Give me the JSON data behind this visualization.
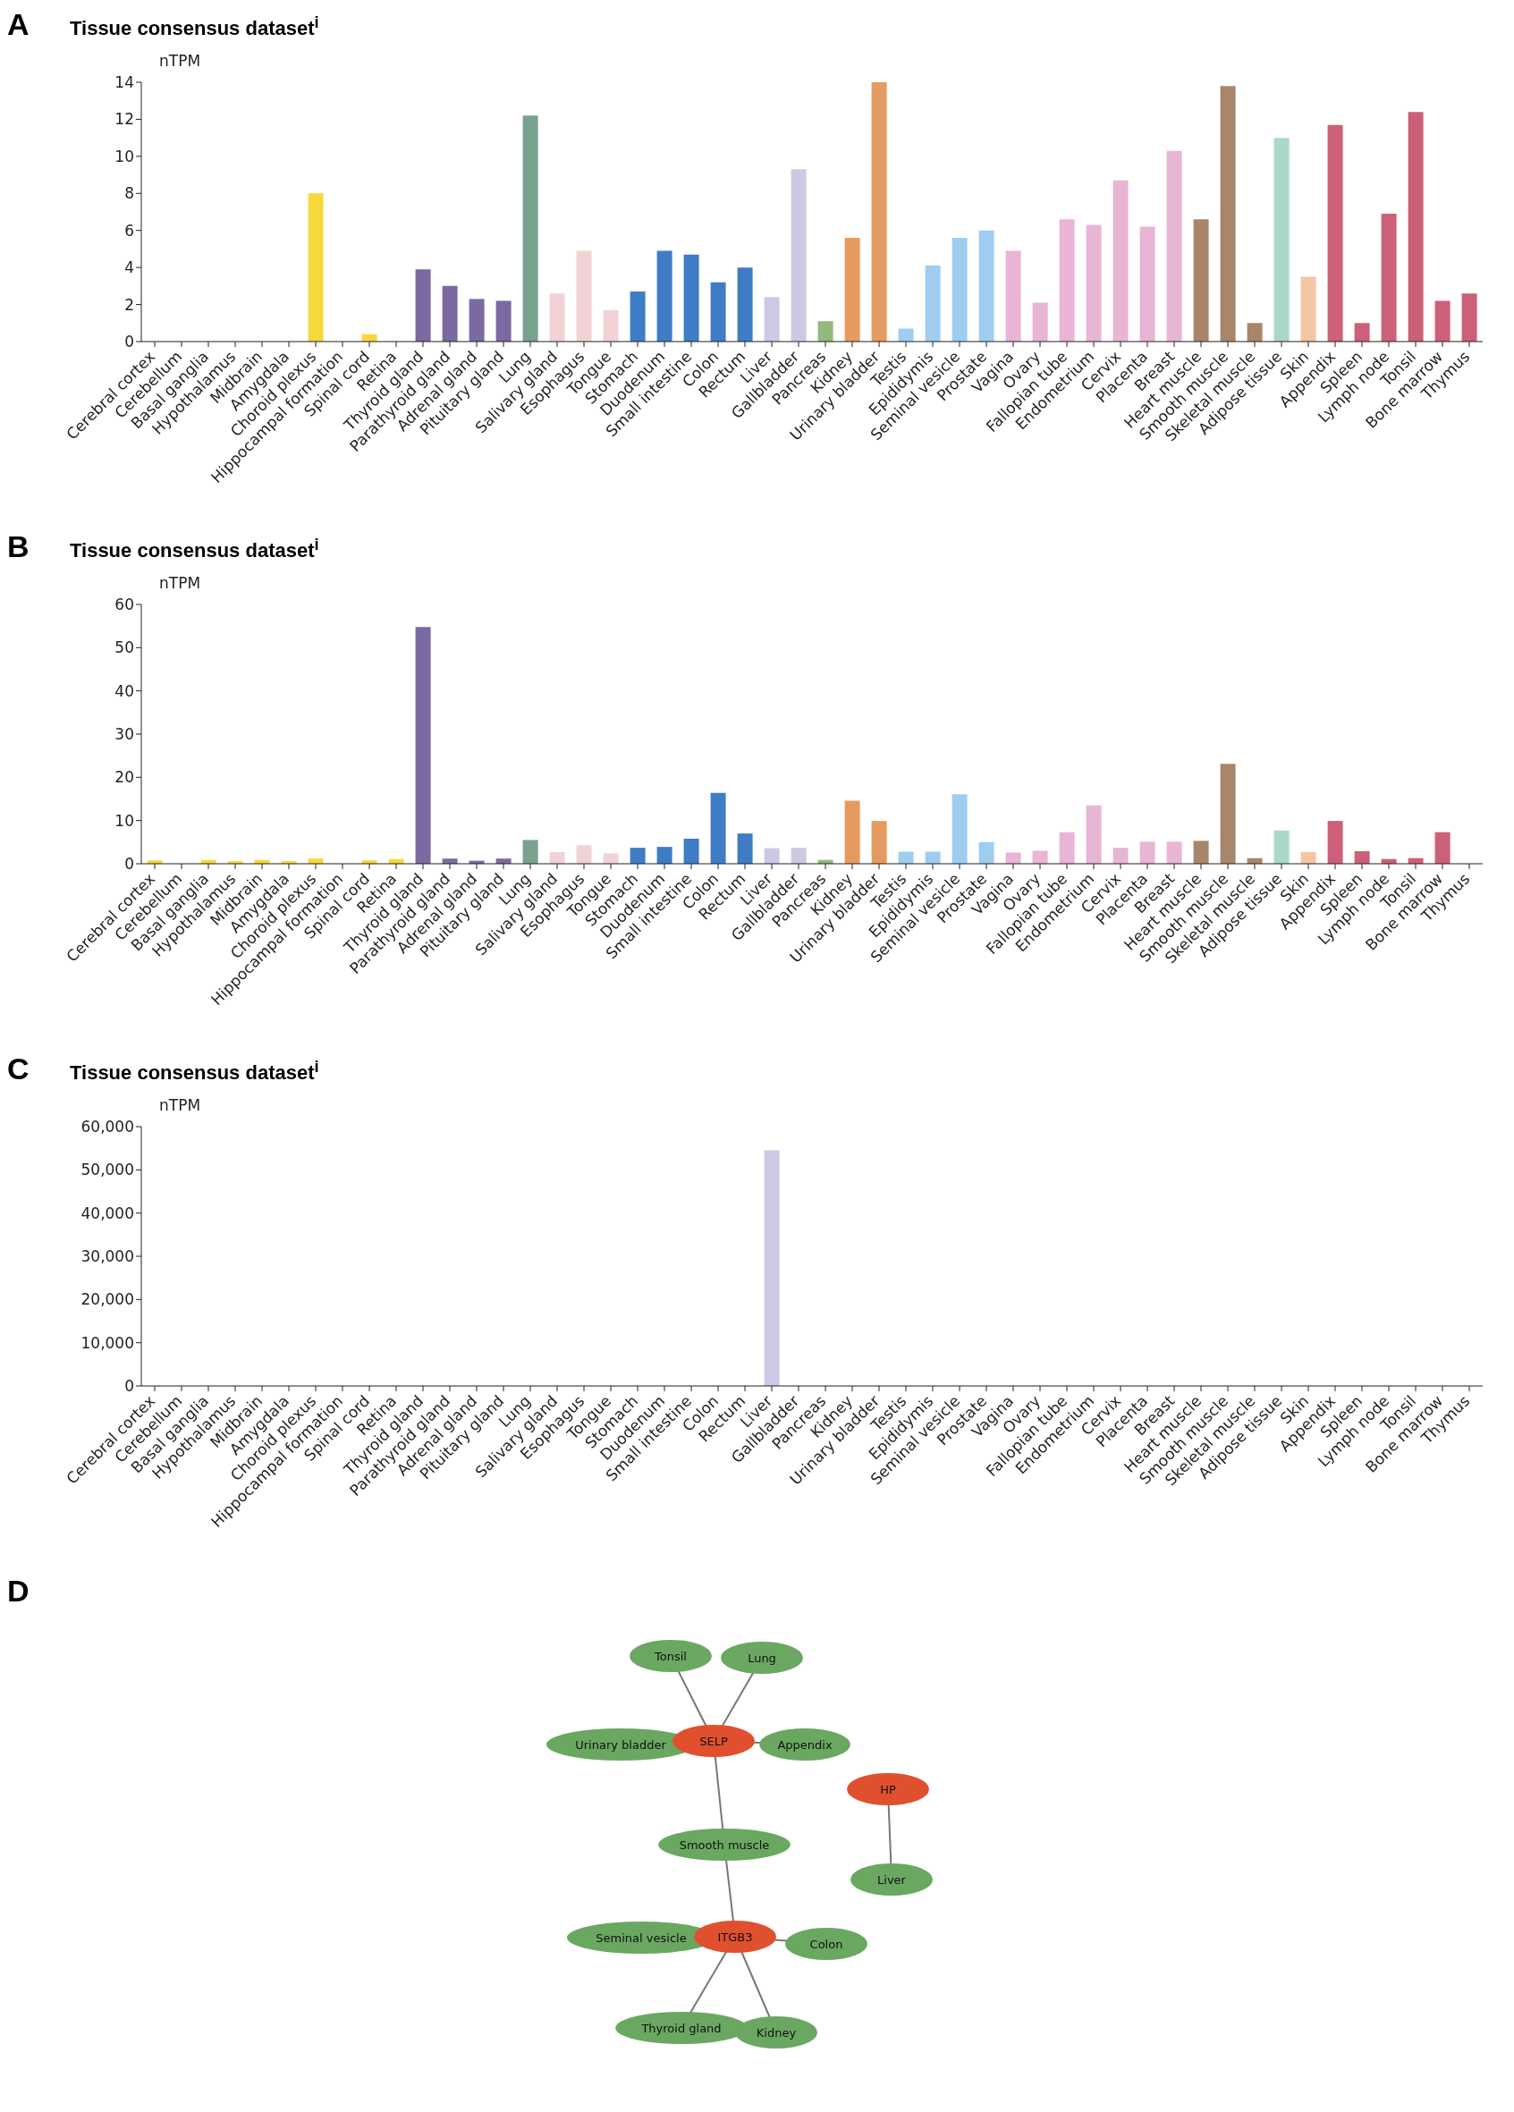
{
  "chart_data": [
    {
      "type": "bar",
      "title": "Tissue consensus dataset$^{i}$",
      "ylabel": "nTPM",
      "annotations": [
        "A"
      ],
      "categories": [
        "Cerebral cortex",
        "Cerebellum",
        "Basal ganglia",
        "Hypothalamus",
        "Midbrain",
        "Amygdala",
        "Choroid plexus",
        "Hippocampal formation",
        "Spinal cord",
        "Retina",
        "Thyroid gland",
        "Parathyroid gland",
        "Adrenal gland",
        "Pituitary gland",
        "Lung",
        "Salivary gland",
        "Esophagus",
        "Tongue",
        "Stomach",
        "Duodenum",
        "Small intestine",
        "Colon",
        "Rectum",
        "Liver",
        "Gallbladder",
        "Pancreas",
        "Kidney",
        "Urinary bladder",
        "Testis",
        "Epididymis",
        "Seminal vesicle",
        "Prostate",
        "Vagina",
        "Ovary",
        "Fallopian tube",
        "Endometrium",
        "Cervix",
        "Placenta",
        "Breast",
        "Heart muscle",
        "Smooth muscle",
        "Skeletal muscle",
        "Adipose tissue",
        "Skin",
        "Appendix",
        "Spleen",
        "Lymph node",
        "Tonsil",
        "Bone marrow",
        "Thymus"
      ],
      "values": [
        0,
        0,
        0,
        0,
        0,
        0,
        8.0,
        0,
        0.4,
        0,
        3.9,
        3.0,
        2.3,
        2.2,
        12.2,
        2.6,
        4.9,
        1.7,
        2.7,
        4.9,
        4.7,
        3.2,
        4.0,
        2.4,
        9.3,
        1.1,
        5.6,
        14.0,
        0.7,
        4.1,
        5.6,
        6.0,
        4.9,
        2.1,
        6.6,
        6.3,
        8.7,
        6.2,
        10.3,
        6.6,
        13.8,
        1.0,
        11.0,
        3.5,
        11.7,
        1.0,
        6.9,
        12.4,
        2.2,
        2.6
      ],
      "colors": [
        "#f5d93a",
        "#f5d93a",
        "#f5d93a",
        "#f5d93a",
        "#f5d93a",
        "#f5d93a",
        "#f5d93a",
        "#f5d93a",
        "#f5d93a",
        "#f5d93a",
        "#7b6aa1",
        "#7b6aa1",
        "#7b6aa1",
        "#7b6aa1",
        "#78a28e",
        "#f1d3d6",
        "#f1d3d6",
        "#f1d3d6",
        "#3e7cc5",
        "#3e7cc5",
        "#3e7cc5",
        "#3e7cc5",
        "#3e7cc5",
        "#cdc8e4",
        "#cdc8e4",
        "#93b97d",
        "#e59b5f",
        "#e59b5f",
        "#9fcdf0",
        "#9fcdf0",
        "#9fcdf0",
        "#9fcdf0",
        "#e8b5d5",
        "#e8b5d5",
        "#e8b5d5",
        "#e8b5d5",
        "#e8b5d5",
        "#e8b5d5",
        "#e8b5d5",
        "#a8866c",
        "#a8866c",
        "#a8866c",
        "#aad8c8",
        "#f2c6a5",
        "#cc6078",
        "#cc6078",
        "#cc6078",
        "#cc6078",
        "#cc6078",
        "#cc6078"
      ],
      "ylim": [
        0,
        14
      ],
      "yticks": [
        0,
        2,
        4,
        6,
        8,
        10,
        12,
        14
      ]
    },
    {
      "type": "bar",
      "title": "Tissue consensus dataset$^{i}$",
      "ylabel": "nTPM",
      "annotations": [
        "B"
      ],
      "categories": [
        "Cerebral cortex",
        "Cerebellum",
        "Basal ganglia",
        "Hypothalamus",
        "Midbrain",
        "Amygdala",
        "Choroid plexus",
        "Hippocampal formation",
        "Spinal cord",
        "Retina",
        "Thyroid gland",
        "Parathyroid gland",
        "Adrenal gland",
        "Pituitary gland",
        "Lung",
        "Salivary gland",
        "Esophagus",
        "Tongue",
        "Stomach",
        "Duodenum",
        "Small intestine",
        "Colon",
        "Rectum",
        "Liver",
        "Gallbladder",
        "Pancreas",
        "Kidney",
        "Urinary bladder",
        "Testis",
        "Epididymis",
        "Seminal vesicle",
        "Prostate",
        "Vagina",
        "Ovary",
        "Fallopian tube",
        "Endometrium",
        "Cervix",
        "Placenta",
        "Breast",
        "Heart muscle",
        "Smooth muscle",
        "Skeletal muscle",
        "Adipose tissue",
        "Skin",
        "Appendix",
        "Spleen",
        "Lymph node",
        "Tonsil",
        "Bone marrow",
        "Thymus"
      ],
      "values": [
        0.8,
        null,
        0.9,
        0.6,
        0.9,
        0.6,
        1.2,
        null,
        0.8,
        1.1,
        54.8,
        1.2,
        0.7,
        1.2,
        5.5,
        2.7,
        4.3,
        2.4,
        3.7,
        3.9,
        5.8,
        16.4,
        7.0,
        3.6,
        3.7,
        0.9,
        14.6,
        9.9,
        2.8,
        2.8,
        16.1,
        5.0,
        2.6,
        3.0,
        7.3,
        13.5,
        3.7,
        5.1,
        5.1,
        5.3,
        23.1,
        1.3,
        7.7,
        2.7,
        9.9,
        2.9,
        1.1,
        1.3,
        7.3,
        null
      ],
      "colors": [
        "#f5d93a",
        "#f5d93a",
        "#f5d93a",
        "#f5d93a",
        "#f5d93a",
        "#f5d93a",
        "#f5d93a",
        "#f5d93a",
        "#f5d93a",
        "#f5d93a",
        "#7b6aa1",
        "#7b6aa1",
        "#7b6aa1",
        "#7b6aa1",
        "#78a28e",
        "#f1d3d6",
        "#f1d3d6",
        "#f1d3d6",
        "#3e7cc5",
        "#3e7cc5",
        "#3e7cc5",
        "#3e7cc5",
        "#3e7cc5",
        "#cdc8e4",
        "#cdc8e4",
        "#93b97d",
        "#e59b5f",
        "#e59b5f",
        "#9fcdf0",
        "#9fcdf0",
        "#9fcdf0",
        "#9fcdf0",
        "#e8b5d5",
        "#e8b5d5",
        "#e8b5d5",
        "#e8b5d5",
        "#e8b5d5",
        "#e8b5d5",
        "#e8b5d5",
        "#a8866c",
        "#a8866c",
        "#a8866c",
        "#aad8c8",
        "#f2c6a5",
        "#cc6078",
        "#cc6078",
        "#cc6078",
        "#cc6078",
        "#cc6078",
        "#cc6078"
      ],
      "ylim": [
        0,
        60
      ],
      "yticks": [
        0,
        10,
        20,
        30,
        40,
        50,
        60
      ]
    },
    {
      "type": "bar",
      "title": "Tissue consensus dataset$^{i}$",
      "ylabel": "nTPM",
      "annotations": [
        "C"
      ],
      "categories": [
        "Cerebral cortex",
        "Cerebellum",
        "Basal ganglia",
        "Hypothalamus",
        "Midbrain",
        "Amygdala",
        "Choroid plexus",
        "Hippocampal formation",
        "Spinal cord",
        "Retina",
        "Thyroid gland",
        "Parathyroid gland",
        "Adrenal gland",
        "Pituitary gland",
        "Lung",
        "Salivary gland",
        "Esophagus",
        "Tongue",
        "Stomach",
        "Duodenum",
        "Small intestine",
        "Colon",
        "Rectum",
        "Liver",
        "Gallbladder",
        "Pancreas",
        "Kidney",
        "Urinary bladder",
        "Testis",
        "Epididymis",
        "Seminal vesicle",
        "Prostate",
        "Vagina",
        "Ovary",
        "Fallopian tube",
        "Endometrium",
        "Cervix",
        "Placenta",
        "Breast",
        "Heart muscle",
        "Smooth muscle",
        "Skeletal muscle",
        "Adipose tissue",
        "Skin",
        "Appendix",
        "Spleen",
        "Lymph node",
        "Tonsil",
        "Bone marrow",
        "Thymus"
      ],
      "values": [
        0,
        0,
        0,
        0,
        0,
        0,
        0,
        0,
        0,
        0,
        0,
        0,
        0,
        0,
        0,
        0,
        0,
        0,
        0,
        0,
        0,
        0,
        0,
        54500,
        0,
        0,
        0,
        0,
        0,
        0,
        0,
        0,
        0,
        0,
        0,
        0,
        0,
        0,
        0,
        0,
        0,
        0,
        0,
        0,
        0,
        0,
        0,
        0,
        0,
        0
      ],
      "colors": [
        "#f5d93a",
        "#f5d93a",
        "#f5d93a",
        "#f5d93a",
        "#f5d93a",
        "#f5d93a",
        "#f5d93a",
        "#f5d93a",
        "#f5d93a",
        "#f5d93a",
        "#7b6aa1",
        "#7b6aa1",
        "#7b6aa1",
        "#7b6aa1",
        "#78a28e",
        "#f1d3d6",
        "#f1d3d6",
        "#f1d3d6",
        "#3e7cc5",
        "#3e7cc5",
        "#3e7cc5",
        "#3e7cc5",
        "#3e7cc5",
        "#cdc8e4",
        "#cdc8e4",
        "#93b97d",
        "#e59b5f",
        "#e59b5f",
        "#9fcdf0",
        "#9fcdf0",
        "#9fcdf0",
        "#9fcdf0",
        "#e8b5d5",
        "#e8b5d5",
        "#e8b5d5",
        "#e8b5d5",
        "#e8b5d5",
        "#e8b5d5",
        "#e8b5d5",
        "#a8866c",
        "#a8866c",
        "#a8866c",
        "#aad8c8",
        "#f2c6a5",
        "#cc6078",
        "#cc6078",
        "#cc6078",
        "#cc6078",
        "#cc6078",
        "#cc6078"
      ],
      "ylim": [
        0,
        60000
      ],
      "yticks": [
        {
          "value": 0,
          "label": "0"
        },
        {
          "value": 10000,
          "label": "10,000"
        },
        {
          "value": 20000,
          "label": "20,000"
        },
        {
          "value": 30000,
          "label": "30,000"
        },
        {
          "value": 40000,
          "label": "40,000"
        },
        {
          "value": 50000,
          "label": "50,000"
        },
        {
          "value": 60000,
          "label": "60,000"
        }
      ]
    },
    {
      "type": "other",
      "annotations": [
        "D"
      ],
      "categories": [
        "Tonsil",
        "Lung",
        "Urinary bladder",
        "SELP",
        "Appendix",
        "HP",
        "Smooth muscle",
        "Liver",
        "Seminal vesicle",
        "ITGB3",
        "Colon",
        "Thyroid gland",
        "Kidney"
      ],
      "colors": [
        "#6aa862",
        "#6aa862",
        "#6aa862",
        "#e0502e",
        "#6aa862",
        "#e0502e",
        "#6aa862",
        "#6aa862",
        "#6aa862",
        "#e0502e",
        "#6aa862",
        "#6aa862",
        "#6aa862"
      ]
    }
  ]
}
